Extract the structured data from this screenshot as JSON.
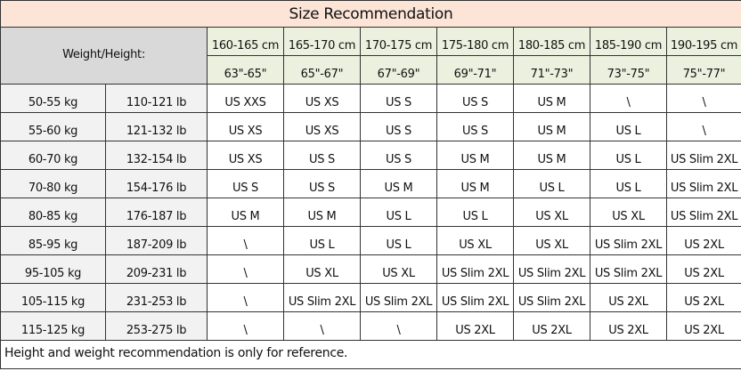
{
  "title": "Size Recommendation",
  "corner_label": "Weight/Height:",
  "heights_cm": [
    "160-165 cm",
    "165-170 cm",
    "170-175 cm",
    "175-180 cm",
    "180-185 cm",
    "185-190 cm",
    "190-195 cm"
  ],
  "heights_in": [
    "63\"-65\"",
    "65\"-67\"",
    "67\"-69\"",
    "69\"-71\"",
    "71\"-73\"",
    "73\"-75\"",
    "75\"-77\""
  ],
  "rows": [
    {
      "kg": "50-55 kg",
      "lb": "110-121 lb",
      "sizes": [
        "US XXS",
        "US XS",
        "US S",
        "US S",
        "US M",
        "\\",
        "\\"
      ]
    },
    {
      "kg": "55-60 kg",
      "lb": "121-132 lb",
      "sizes": [
        "US XS",
        "US XS",
        "US S",
        "US S",
        "US M",
        "US L",
        "\\"
      ]
    },
    {
      "kg": "60-70 kg",
      "lb": "132-154 lb",
      "sizes": [
        "US XS",
        "US S",
        "US S",
        "US M",
        "US M",
        "US L",
        "US Slim 2XL"
      ]
    },
    {
      "kg": "70-80 kg",
      "lb": "154-176 lb",
      "sizes": [
        "US S",
        "US S",
        "US M",
        "US M",
        "US L",
        "US L",
        "US Slim 2XL"
      ]
    },
    {
      "kg": "80-85 kg",
      "lb": "176-187 lb",
      "sizes": [
        "US M",
        "US M",
        "US L",
        "US L",
        "US XL",
        "US XL",
        "US Slim 2XL"
      ]
    },
    {
      "kg": "85-95 kg",
      "lb": "187-209 lb",
      "sizes": [
        "\\",
        "US L",
        "US L",
        "US XL",
        "US XL",
        "US Slim 2XL",
        "US 2XL"
      ]
    },
    {
      "kg": "95-105 kg",
      "lb": "209-231 lb",
      "sizes": [
        "\\",
        "US XL",
        "US XL",
        "US Slim 2XL",
        "US Slim 2XL",
        "US Slim 2XL",
        "US 2XL"
      ]
    },
    {
      "kg": "105-115 kg",
      "lb": "231-253 lb",
      "sizes": [
        "\\",
        "US Slim 2XL",
        "US Slim 2XL",
        "US Slim 2XL",
        "US Slim 2XL",
        "US 2XL",
        "US 2XL"
      ]
    },
    {
      "kg": "115-125 kg",
      "lb": "253-275 lb",
      "sizes": [
        "\\",
        "\\",
        "\\",
        "US 2XL",
        "US 2XL",
        "US 2XL",
        "US 2XL"
      ]
    }
  ],
  "footer": "Height and weight recommendation is only for reference.",
  "colors": {
    "title_bg": "#fce4d6",
    "corner_bg": "#d9d9d9",
    "height_bg": "#ebf1de",
    "weight_bg": "#f2f2f2"
  }
}
